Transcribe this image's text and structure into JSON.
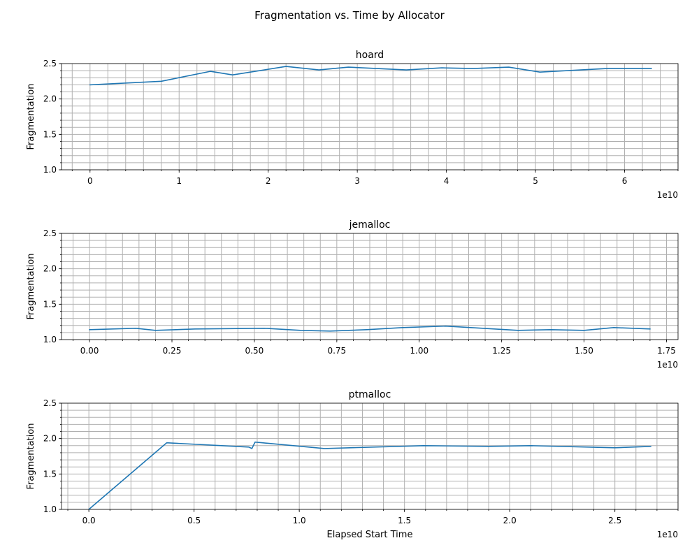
{
  "figure": {
    "title": "Fragmentation vs. Time by Allocator"
  },
  "colors": {
    "line": "#1f77b4",
    "grid": "#b0b0b0",
    "axes": "#000000",
    "background": "#ffffff"
  },
  "chart_data": [
    {
      "type": "line",
      "title": "hoard",
      "xlabel": "",
      "ylabel": "Fragmentation",
      "x_offset_text": "1e10",
      "xlim": [
        -0.32,
        6.6
      ],
      "ylim": [
        1.0,
        2.5
      ],
      "xticks": [
        0,
        1,
        2,
        3,
        4,
        5,
        6
      ],
      "xtick_labels": [
        "0",
        "1",
        "2",
        "3",
        "4",
        "5",
        "6"
      ],
      "x_minor_step": 0.2,
      "yticks": [
        1.0,
        1.5,
        2.0,
        2.5
      ],
      "ytick_labels": [
        "1.0",
        "1.5",
        "2.0",
        "2.5"
      ],
      "y_minor_step": 0.1,
      "grid": "major+minor",
      "series": [
        {
          "x": [
            0,
            0.8,
            1.35,
            1.6,
            2.2,
            2.57,
            2.9,
            3.55,
            3.95,
            4.3,
            4.7,
            5.05,
            5.8,
            6.3
          ],
          "y": [
            2.2,
            2.25,
            2.39,
            2.34,
            2.46,
            2.41,
            2.45,
            2.41,
            2.44,
            2.43,
            2.45,
            2.38,
            2.43,
            2.43
          ]
        }
      ]
    },
    {
      "type": "line",
      "title": "jemalloc",
      "xlabel": "",
      "ylabel": "Fragmentation",
      "x_offset_text": "1e10",
      "xlim": [
        -0.085,
        1.785
      ],
      "ylim": [
        1.0,
        2.5
      ],
      "xticks": [
        0,
        0.25,
        0.5,
        0.75,
        1.0,
        1.25,
        1.5,
        1.75
      ],
      "xtick_labels": [
        "0.00",
        "0.25",
        "0.50",
        "0.75",
        "1.00",
        "1.25",
        "1.50",
        "1.75"
      ],
      "x_minor_step": 0.05,
      "yticks": [
        1.0,
        1.5,
        2.0,
        2.5
      ],
      "ytick_labels": [
        "1.0",
        "1.5",
        "2.0",
        "2.5"
      ],
      "y_minor_step": 0.1,
      "grid": "major+minor",
      "series": [
        {
          "x": [
            0,
            0.14,
            0.2,
            0.32,
            0.53,
            0.64,
            0.73,
            0.84,
            0.95,
            1.08,
            1.3,
            1.4,
            1.5,
            1.59,
            1.7
          ],
          "y": [
            1.14,
            1.16,
            1.13,
            1.15,
            1.16,
            1.13,
            1.12,
            1.14,
            1.17,
            1.19,
            1.13,
            1.14,
            1.13,
            1.17,
            1.15
          ]
        }
      ]
    },
    {
      "type": "line",
      "title": "ptmalloc",
      "xlabel": "Elapsed Start Time",
      "ylabel": "Fragmentation",
      "x_offset_text": "1e10",
      "xlim": [
        -0.13,
        2.8
      ],
      "ylim": [
        1.0,
        2.5
      ],
      "xticks": [
        0,
        0.5,
        1.0,
        1.5,
        2.0,
        2.5
      ],
      "xtick_labels": [
        "0.0",
        "0.5",
        "1.0",
        "1.5",
        "2.0",
        "2.5"
      ],
      "x_minor_step": 0.1,
      "yticks": [
        1.0,
        1.5,
        2.0,
        2.5
      ],
      "ytick_labels": [
        "1.0",
        "1.5",
        "2.0",
        "2.5"
      ],
      "y_minor_step": 0.1,
      "grid": "major+minor",
      "series": [
        {
          "x": [
            0,
            0.37,
            0.76,
            0.775,
            0.79,
            1.12,
            1.59,
            1.9,
            2.1,
            2.5,
            2.67
          ],
          "y": [
            1.0,
            1.94,
            1.88,
            1.86,
            1.95,
            1.86,
            1.9,
            1.89,
            1.9,
            1.87,
            1.89
          ]
        }
      ]
    }
  ]
}
